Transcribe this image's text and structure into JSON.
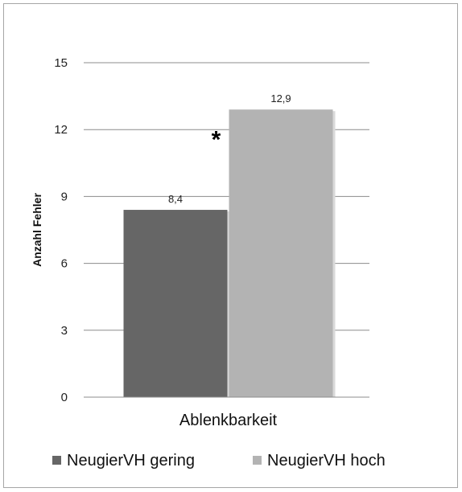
{
  "chart_data": {
    "type": "bar",
    "categories": [
      "Ablenkbarkeit"
    ],
    "series": [
      {
        "name": "NeugierVH gering",
        "values": [
          8.4
        ],
        "color": "#666666",
        "label": "8,4"
      },
      {
        "name": "NeugierVH hoch",
        "values": [
          12.9
        ],
        "color": "#b3b3b3",
        "label": "12,9"
      }
    ],
    "ylabel": "Anzahl Fehler",
    "ylim": [
      0,
      15
    ],
    "yticks": [
      "0",
      "3",
      "6",
      "9",
      "12",
      "15"
    ],
    "yticks_values": [
      0,
      3,
      6,
      9,
      12,
      15
    ],
    "grid": true,
    "legend": "bottom",
    "annotation": "*"
  }
}
